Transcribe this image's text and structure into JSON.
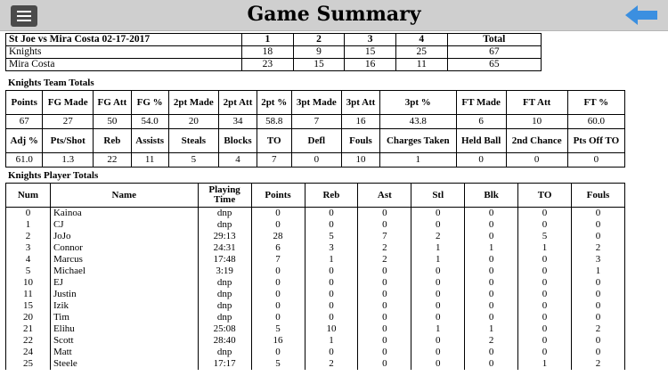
{
  "header": {
    "title": "Game Summary",
    "menu_icon": "hamburger-menu-icon",
    "back_icon": "back-arrow-icon",
    "back_color": "#3b8fe0"
  },
  "score": {
    "title": "St Joe vs Mira Costa 02-17-2017",
    "columns": [
      "1",
      "2",
      "3",
      "4",
      "Total"
    ],
    "rows": [
      {
        "team": "Knights",
        "values": [
          "18",
          "9",
          "15",
          "25",
          "67"
        ]
      },
      {
        "team": "Mira Costa",
        "values": [
          "23",
          "15",
          "16",
          "11",
          "65"
        ]
      }
    ]
  },
  "team_totals": {
    "title": "Knights Team Totals",
    "row1_headers": [
      "Points",
      "FG Made",
      "FG Att",
      "FG %",
      "2pt Made",
      "2pt Att",
      "2pt %",
      "3pt Made",
      "3pt Att",
      "3pt %",
      "FT Made",
      "FT Att",
      "FT %"
    ],
    "row1_values": [
      "67",
      "27",
      "50",
      "54.0",
      "20",
      "34",
      "58.8",
      "7",
      "16",
      "43.8",
      "6",
      "10",
      "60.0"
    ],
    "row2_headers": [
      "Adj %",
      "Pts/Shot",
      "Reb",
      "Assists",
      "Steals",
      "Blocks",
      "TO",
      "Defl",
      "Fouls",
      "Charges Taken",
      "Held Ball",
      "2nd Chance",
      "Pts Off TO"
    ],
    "row2_values": [
      "61.0",
      "1.3",
      "22",
      "11",
      "5",
      "4",
      "7",
      "0",
      "10",
      "1",
      "0",
      "0",
      "0"
    ]
  },
  "player_totals": {
    "title": "Knights Player Totals",
    "headers": [
      "Num",
      "Name",
      "Playing Time",
      "Points",
      "Reb",
      "Ast",
      "Stl",
      "Blk",
      "TO",
      "Fouls"
    ],
    "rows": [
      [
        "0",
        "Kainoa",
        "dnp",
        "0",
        "0",
        "0",
        "0",
        "0",
        "0",
        "0"
      ],
      [
        "1",
        "CJ",
        "dnp",
        "0",
        "0",
        "0",
        "0",
        "0",
        "0",
        "0"
      ],
      [
        "2",
        "JoJo",
        "29:13",
        "28",
        "5",
        "7",
        "2",
        "0",
        "5",
        "0"
      ],
      [
        "3",
        "Connor",
        "24:31",
        "6",
        "3",
        "2",
        "1",
        "1",
        "1",
        "2"
      ],
      [
        "4",
        "Marcus",
        "17:48",
        "7",
        "1",
        "2",
        "1",
        "0",
        "0",
        "3"
      ],
      [
        "5",
        "Michael",
        "3:19",
        "0",
        "0",
        "0",
        "0",
        "0",
        "0",
        "1"
      ],
      [
        "10",
        "EJ",
        "dnp",
        "0",
        "0",
        "0",
        "0",
        "0",
        "0",
        "0"
      ],
      [
        "11",
        "Justin",
        "dnp",
        "0",
        "0",
        "0",
        "0",
        "0",
        "0",
        "0"
      ],
      [
        "15",
        "Izik",
        "dnp",
        "0",
        "0",
        "0",
        "0",
        "0",
        "0",
        "0"
      ],
      [
        "20",
        "Tim",
        "dnp",
        "0",
        "0",
        "0",
        "0",
        "0",
        "0",
        "0"
      ],
      [
        "21",
        "Elihu",
        "25:08",
        "5",
        "10",
        "0",
        "1",
        "1",
        "0",
        "2"
      ],
      [
        "22",
        "Scott",
        "28:40",
        "16",
        "1",
        "0",
        "0",
        "2",
        "0",
        "0"
      ],
      [
        "24",
        "Matt",
        "dnp",
        "0",
        "0",
        "0",
        "0",
        "0",
        "0",
        "0"
      ],
      [
        "25",
        "Steele",
        "17:17",
        "5",
        "2",
        "0",
        "0",
        "0",
        "1",
        "2"
      ]
    ]
  }
}
